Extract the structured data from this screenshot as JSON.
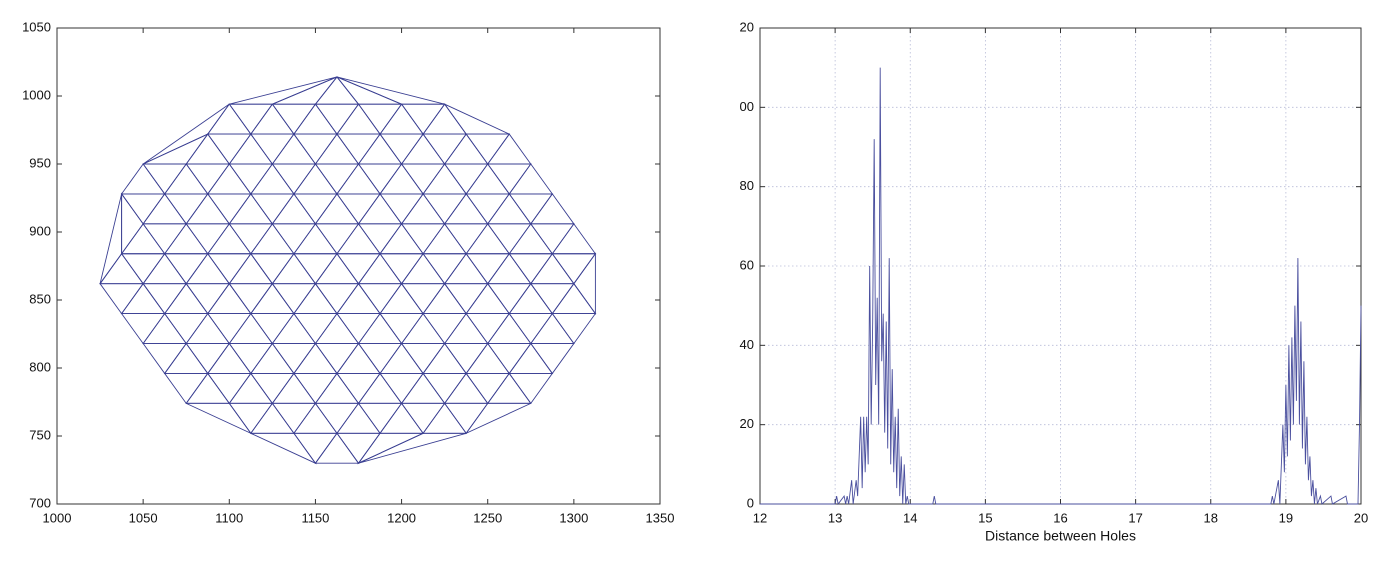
{
  "chart_data": [
    {
      "type": "mesh",
      "color": "#3a3f92",
      "xlim": [
        1000,
        1350
      ],
      "xticks": [
        1000,
        1050,
        1100,
        1150,
        1200,
        1250,
        1300,
        1350
      ],
      "ylim": [
        700,
        1050
      ],
      "yticks": [
        700,
        750,
        800,
        850,
        900,
        950,
        1000,
        1050
      ],
      "points": [
        [
          1150,
          730
        ],
        [
          1175,
          730
        ],
        [
          1112.5,
          752
        ],
        [
          1137.5,
          752
        ],
        [
          1162.5,
          752
        ],
        [
          1187.5,
          752
        ],
        [
          1212.5,
          752
        ],
        [
          1237.5,
          752
        ],
        [
          1075,
          774
        ],
        [
          1100,
          774
        ],
        [
          1125,
          774
        ],
        [
          1150,
          774
        ],
        [
          1175,
          774
        ],
        [
          1200,
          774
        ],
        [
          1225,
          774
        ],
        [
          1250,
          774
        ],
        [
          1275,
          774
        ],
        [
          1062.5,
          796
        ],
        [
          1087.5,
          796
        ],
        [
          1112.5,
          796
        ],
        [
          1137.5,
          796
        ],
        [
          1162.5,
          796
        ],
        [
          1187.5,
          796
        ],
        [
          1212.5,
          796
        ],
        [
          1237.5,
          796
        ],
        [
          1262.5,
          796
        ],
        [
          1287.5,
          796
        ],
        [
          1050,
          818
        ],
        [
          1075,
          818
        ],
        [
          1100,
          818
        ],
        [
          1125,
          818
        ],
        [
          1150,
          818
        ],
        [
          1175,
          818
        ],
        [
          1200,
          818
        ],
        [
          1225,
          818
        ],
        [
          1250,
          818
        ],
        [
          1275,
          818
        ],
        [
          1300,
          818
        ],
        [
          1037.5,
          840
        ],
        [
          1062.5,
          840
        ],
        [
          1087.5,
          840
        ],
        [
          1112.5,
          840
        ],
        [
          1137.5,
          840
        ],
        [
          1162.5,
          840
        ],
        [
          1187.5,
          840
        ],
        [
          1212.5,
          840
        ],
        [
          1237.5,
          840
        ],
        [
          1262.5,
          840
        ],
        [
          1287.5,
          840
        ],
        [
          1312.5,
          840
        ],
        [
          1025,
          862
        ],
        [
          1050,
          862
        ],
        [
          1075,
          862
        ],
        [
          1100,
          862
        ],
        [
          1125,
          862
        ],
        [
          1150,
          862
        ],
        [
          1175,
          862
        ],
        [
          1200,
          862
        ],
        [
          1225,
          862
        ],
        [
          1250,
          862
        ],
        [
          1275,
          862
        ],
        [
          1300,
          862
        ],
        [
          1037.5,
          884
        ],
        [
          1062.5,
          884
        ],
        [
          1087.5,
          884
        ],
        [
          1112.5,
          884
        ],
        [
          1137.5,
          884
        ],
        [
          1162.5,
          884
        ],
        [
          1187.5,
          884
        ],
        [
          1212.5,
          884
        ],
        [
          1237.5,
          884
        ],
        [
          1262.5,
          884
        ],
        [
          1287.5,
          884
        ],
        [
          1312.5,
          884
        ],
        [
          1050,
          906
        ],
        [
          1075,
          906
        ],
        [
          1100,
          906
        ],
        [
          1125,
          906
        ],
        [
          1150,
          906
        ],
        [
          1175,
          906
        ],
        [
          1200,
          906
        ],
        [
          1225,
          906
        ],
        [
          1250,
          906
        ],
        [
          1275,
          906
        ],
        [
          1300,
          906
        ],
        [
          1037.5,
          928
        ],
        [
          1062.5,
          928
        ],
        [
          1087.5,
          928
        ],
        [
          1112.5,
          928
        ],
        [
          1137.5,
          928
        ],
        [
          1162.5,
          928
        ],
        [
          1187.5,
          928
        ],
        [
          1212.5,
          928
        ],
        [
          1237.5,
          928
        ],
        [
          1262.5,
          928
        ],
        [
          1287.5,
          928
        ],
        [
          1050,
          950
        ],
        [
          1075,
          950
        ],
        [
          1100,
          950
        ],
        [
          1125,
          950
        ],
        [
          1150,
          950
        ],
        [
          1175,
          950
        ],
        [
          1200,
          950
        ],
        [
          1225,
          950
        ],
        [
          1250,
          950
        ],
        [
          1275,
          950
        ],
        [
          1087.5,
          972
        ],
        [
          1112.5,
          972
        ],
        [
          1137.5,
          972
        ],
        [
          1162.5,
          972
        ],
        [
          1187.5,
          972
        ],
        [
          1212.5,
          972
        ],
        [
          1237.5,
          972
        ],
        [
          1262.5,
          972
        ],
        [
          1100,
          994
        ],
        [
          1125,
          994
        ],
        [
          1150,
          994
        ],
        [
          1175,
          994
        ],
        [
          1200,
          994
        ],
        [
          1225,
          994
        ],
        [
          1162.5,
          1014
        ]
      ]
    },
    {
      "type": "line",
      "color": "#4a4f9e",
      "grid": true,
      "xlabel": "Distance between Holes",
      "xlim": [
        12,
        20
      ],
      "xticks": [
        12,
        13,
        14,
        15,
        16,
        17,
        18,
        19,
        20
      ],
      "ylim": [
        0,
        120
      ],
      "yticks": [
        0,
        20,
        40,
        60,
        80,
        {
          "value": 100,
          "label": "00"
        },
        {
          "value": 120,
          "label": "20"
        }
      ],
      "x": [
        12,
        13.0,
        13.02,
        13.04,
        13.12,
        13.14,
        13.16,
        13.18,
        13.22,
        13.24,
        13.28,
        13.3,
        13.34,
        13.36,
        13.38,
        13.4,
        13.42,
        13.44,
        13.46,
        13.48,
        13.5,
        13.52,
        13.54,
        13.56,
        13.58,
        13.6,
        13.62,
        13.64,
        13.66,
        13.68,
        13.7,
        13.72,
        13.74,
        13.76,
        13.78,
        13.8,
        13.82,
        13.84,
        13.86,
        13.88,
        13.9,
        13.92,
        13.94,
        13.96,
        13.98,
        14.3,
        14.32,
        14.34,
        18.8,
        18.82,
        18.84,
        18.9,
        18.92,
        18.96,
        18.98,
        19.0,
        19.02,
        19.04,
        19.06,
        19.08,
        19.1,
        19.12,
        19.14,
        19.16,
        19.18,
        19.2,
        19.22,
        19.24,
        19.26,
        19.28,
        19.3,
        19.32,
        19.34,
        19.36,
        19.38,
        19.4,
        19.42,
        19.46,
        19.48,
        19.6,
        19.62,
        19.8,
        19.82,
        19.96,
        19.98,
        20
      ],
      "values": [
        0,
        0,
        2,
        0,
        2,
        0,
        2,
        0,
        6,
        0,
        6,
        2,
        22,
        4,
        22,
        8,
        22,
        10,
        60,
        20,
        46,
        92,
        30,
        52,
        20,
        110,
        36,
        48,
        18,
        46,
        14,
        62,
        10,
        34,
        8,
        22,
        4,
        24,
        2,
        12,
        0,
        10,
        0,
        2,
        0,
        0,
        2,
        0,
        0,
        2,
        0,
        6,
        0,
        20,
        8,
        30,
        12,
        40,
        16,
        42,
        20,
        50,
        26,
        62,
        20,
        46,
        14,
        36,
        10,
        22,
        6,
        12,
        2,
        6,
        0,
        4,
        0,
        2,
        0,
        2,
        0,
        2,
        0,
        0,
        20,
        50
      ]
    }
  ]
}
